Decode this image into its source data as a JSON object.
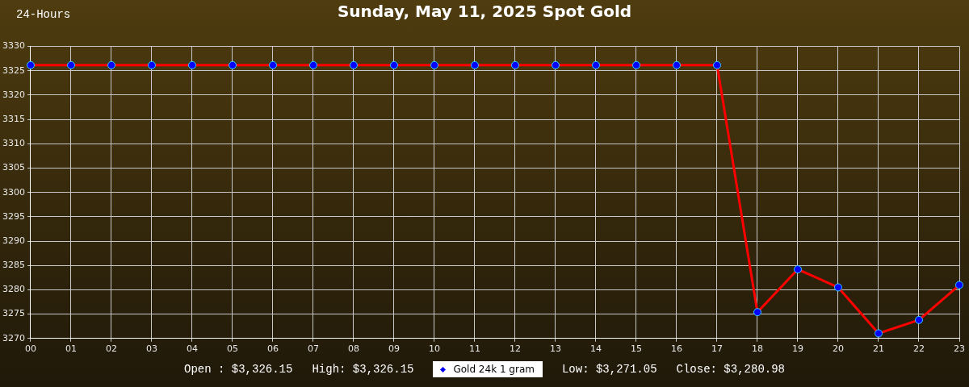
{
  "chart_data": {
    "type": "line",
    "title": "Sunday, May 11, 2025 Spot Gold",
    "annotations": [
      "24-Hours",
      "Open : $3,326.15",
      "High: $3,326.15",
      "Low: $3,271.05",
      "Close: $3,280.98"
    ],
    "categories": [
      "00",
      "01",
      "02",
      "03",
      "04",
      "05",
      "06",
      "07",
      "08",
      "09",
      "10",
      "11",
      "12",
      "13",
      "14",
      "15",
      "16",
      "17",
      "18",
      "19",
      "20",
      "21",
      "22",
      "23"
    ],
    "series": [
      {
        "name": "Gold 24k 1 gram",
        "color": "#ff0000",
        "values": [
          3326.15,
          3326.15,
          3326.15,
          3326.15,
          3326.15,
          3326.15,
          3326.15,
          3326.15,
          3326.15,
          3326.15,
          3326.15,
          3326.15,
          3326.15,
          3326.15,
          3326.15,
          3326.15,
          3326.15,
          3326.15,
          3275.4,
          3284.2,
          3280.5,
          3271.05,
          3273.8,
          3280.98
        ]
      }
    ],
    "ylim": [
      3270,
      3330
    ],
    "yticks": [
      3270,
      3275,
      3280,
      3285,
      3290,
      3295,
      3300,
      3305,
      3310,
      3315,
      3320,
      3325,
      3330
    ],
    "grid": true,
    "legend": "bottom",
    "marker": "circle",
    "line_style": "solid"
  }
}
